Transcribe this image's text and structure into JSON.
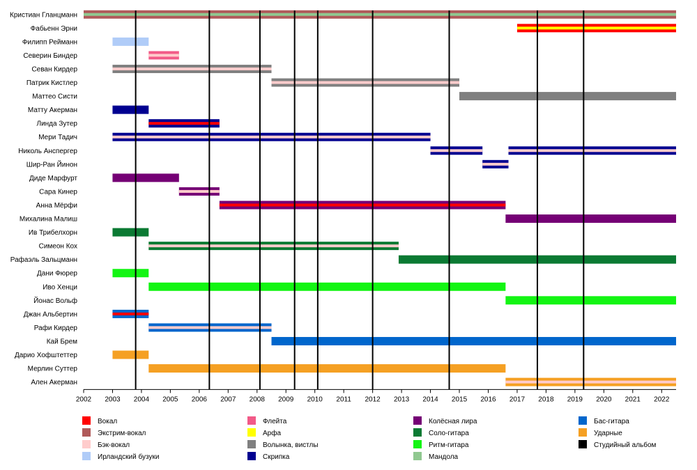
{
  "chart_data": {
    "type": "timeline",
    "x_range": [
      2002,
      2022.5
    ],
    "x_ticks": [
      2002,
      2003,
      2004,
      2005,
      2006,
      2007,
      2008,
      2009,
      2010,
      2011,
      2012,
      2013,
      2014,
      2015,
      2016,
      2017,
      2018,
      2019,
      2020,
      2021,
      2022
    ],
    "studio_albums": [
      2003.8,
      2006.35,
      2008.1,
      2009.3,
      2010.1,
      2012.0,
      2014.65,
      2017.7,
      2019.3
    ],
    "roles": [
      {
        "key": "vocal",
        "label": "Вокал",
        "color": "#ff0000"
      },
      {
        "key": "extreme",
        "label": "Экстрим-вокал",
        "color": "#b05a5a"
      },
      {
        "key": "backing",
        "label": "Бэк-вокал",
        "color": "#ffcccc"
      },
      {
        "key": "bouzouki",
        "label": "Ирландский бузуки",
        "color": "#b0ccf8"
      },
      {
        "key": "flute",
        "label": "Флейта",
        "color": "#f25a88"
      },
      {
        "key": "harp",
        "label": "Арфа",
        "color": "#ffff00"
      },
      {
        "key": "bagpipes",
        "label": "Волынка, вистлы",
        "color": "#808080"
      },
      {
        "key": "violin",
        "label": "Скрипка",
        "color": "#000090"
      },
      {
        "key": "hurdy",
        "label": "Колёсная лира",
        "color": "#750075"
      },
      {
        "key": "lead",
        "label": "Соло-гитара",
        "color": "#0b7a33"
      },
      {
        "key": "rhythm",
        "label": "Ритм-гитара",
        "color": "#13f513"
      },
      {
        "key": "mandola",
        "label": "Мандола",
        "color": "#90c890"
      },
      {
        "key": "bass",
        "label": "Бас-гитара",
        "color": "#0066cc"
      },
      {
        "key": "drums",
        "label": "Ударные",
        "color": "#f5a023"
      },
      {
        "key": "album",
        "label": "Студийный альбом",
        "color": "#000000"
      }
    ],
    "members": [
      {
        "name": "Кристиан Гланцманн",
        "bars": [
          {
            "start": 2002,
            "end": 2022.5,
            "main": "extreme",
            "stripe": "mandola"
          }
        ]
      },
      {
        "name": "Фабьенн Эрни",
        "bars": [
          {
            "start": 2017,
            "end": 2022.5,
            "main": "vocal",
            "stripe": "harp"
          }
        ]
      },
      {
        "name": "Филипп Рейманн",
        "bars": [
          {
            "start": 2003,
            "end": 2004.25,
            "main": "bouzouki"
          }
        ]
      },
      {
        "name": "Северин Биндер",
        "bars": [
          {
            "start": 2004.25,
            "end": 2005.3,
            "main": "flute",
            "stripe": "backing"
          }
        ]
      },
      {
        "name": "Севан Кирдер",
        "bars": [
          {
            "start": 2003,
            "end": 2008.5,
            "main": "bagpipes",
            "stripe": "backing"
          }
        ]
      },
      {
        "name": "Патрик Кистлер",
        "bars": [
          {
            "start": 2008.5,
            "end": 2015.0,
            "main": "bagpipes",
            "stripe": "backing"
          }
        ]
      },
      {
        "name": "Маттео Систи",
        "bars": [
          {
            "start": 2015.0,
            "end": 2022.5,
            "main": "bagpipes"
          }
        ]
      },
      {
        "name": "Матту Акерман",
        "bars": [
          {
            "start": 2003,
            "end": 2004.25,
            "main": "violin"
          }
        ]
      },
      {
        "name": "Линда Зутер",
        "bars": [
          {
            "start": 2004.25,
            "end": 2006.7,
            "main": "violin",
            "stripe": "vocal"
          }
        ]
      },
      {
        "name": "Мери Тадич",
        "bars": [
          {
            "start": 2003,
            "end": 2014.0,
            "main": "violin",
            "stripe": "backing"
          }
        ]
      },
      {
        "name": "Николь Анспергер",
        "bars": [
          {
            "start": 2014.0,
            "end": 2015.8,
            "main": "violin",
            "stripe": "backing"
          },
          {
            "start": 2016.7,
            "end": 2022.5,
            "main": "violin",
            "stripe": "backing"
          }
        ]
      },
      {
        "name": "Шир-Ран Йинон",
        "bars": [
          {
            "start": 2015.8,
            "end": 2016.7,
            "main": "violin",
            "stripe": "backing"
          }
        ]
      },
      {
        "name": "Диде Марфурт",
        "bars": [
          {
            "start": 2003,
            "end": 2005.3,
            "main": "hurdy"
          }
        ]
      },
      {
        "name": "Сара Кинер",
        "bars": [
          {
            "start": 2005.3,
            "end": 2006.7,
            "main": "hurdy",
            "stripe": "backing"
          }
        ]
      },
      {
        "name": "Анна Мёрфи",
        "bars": [
          {
            "start": 2006.7,
            "end": 2016.6,
            "main": "hurdy",
            "stripe": "vocal"
          }
        ]
      },
      {
        "name": "Михалина Малиш",
        "bars": [
          {
            "start": 2016.6,
            "end": 2022.5,
            "main": "hurdy"
          }
        ]
      },
      {
        "name": "Ив Трибелхорн",
        "bars": [
          {
            "start": 2003,
            "end": 2004.25,
            "main": "lead"
          }
        ]
      },
      {
        "name": "Симеон Кох",
        "bars": [
          {
            "start": 2004.25,
            "end": 2012.9,
            "main": "lead",
            "stripe": "backing"
          }
        ]
      },
      {
        "name": "Рафаэль Зальцманн",
        "bars": [
          {
            "start": 2012.9,
            "end": 2022.5,
            "main": "lead"
          }
        ]
      },
      {
        "name": "Дани Фюрер",
        "bars": [
          {
            "start": 2003,
            "end": 2004.25,
            "main": "rhythm"
          }
        ]
      },
      {
        "name": "Иво Хенци",
        "bars": [
          {
            "start": 2004.25,
            "end": 2016.6,
            "main": "rhythm"
          }
        ]
      },
      {
        "name": "Йонас Вольф",
        "bars": [
          {
            "start": 2016.6,
            "end": 2022.5,
            "main": "rhythm"
          }
        ]
      },
      {
        "name": "Джан Альбертин",
        "bars": [
          {
            "start": 2003,
            "end": 2004.25,
            "main": "bass",
            "stripe": "vocal"
          }
        ]
      },
      {
        "name": "Рафи Кирдер",
        "bars": [
          {
            "start": 2004.25,
            "end": 2008.5,
            "main": "bass",
            "stripe": "backing"
          }
        ]
      },
      {
        "name": "Кай Брем",
        "bars": [
          {
            "start": 2008.5,
            "end": 2022.5,
            "main": "bass"
          }
        ]
      },
      {
        "name": "Дарио Хофштеттер",
        "bars": [
          {
            "start": 2003,
            "end": 2004.25,
            "main": "drums"
          }
        ]
      },
      {
        "name": "Мерлин Суттер",
        "bars": [
          {
            "start": 2004.25,
            "end": 2016.6,
            "main": "drums"
          }
        ]
      },
      {
        "name": "Ален Акерман",
        "bars": [
          {
            "start": 2016.6,
            "end": 2022.5,
            "main": "drums",
            "stripe": "backing"
          }
        ]
      }
    ]
  }
}
